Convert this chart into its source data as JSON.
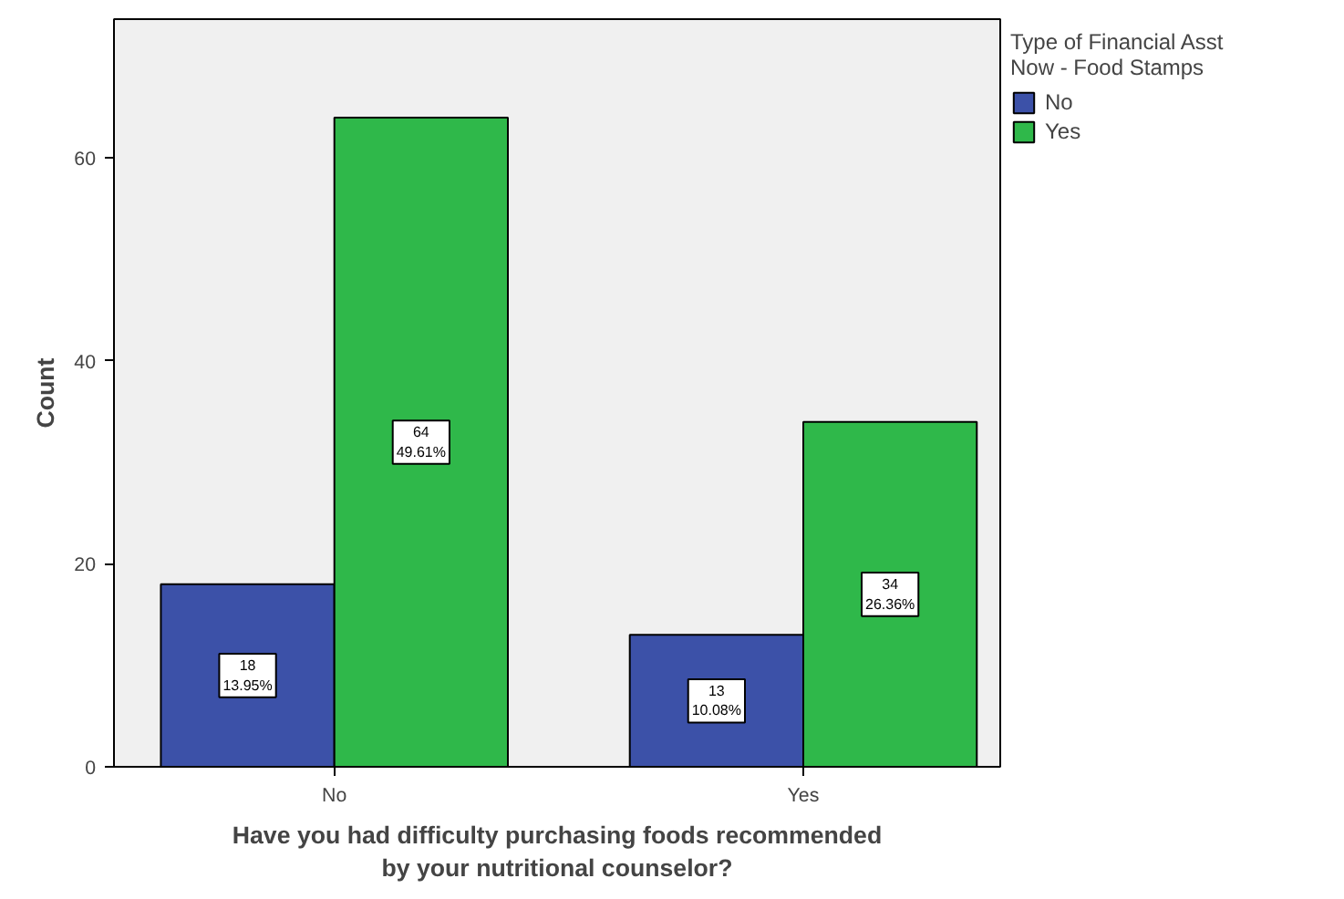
{
  "chart_data": {
    "type": "bar",
    "xlabel": "Have you had difficulty purchasing foods recommended\nby your nutritional counselor?",
    "ylabel": "Count",
    "legend_title": "Type of Financial Asst\nNow - Food Stamps",
    "categories": [
      "No",
      "Yes"
    ],
    "series": [
      {
        "name": "No",
        "color": "#3c51a8",
        "values": [
          18,
          13
        ],
        "value_labels": [
          "18\n13.95%",
          "13\n10.08%"
        ]
      },
      {
        "name": "Yes",
        "color": "#2fb84a",
        "values": [
          64,
          34
        ],
        "value_labels": [
          "64\n49.61%",
          "34\n26.36%"
        ]
      }
    ],
    "ylim": [
      0,
      73.7
    ],
    "yticks": [
      0,
      20,
      40,
      60
    ],
    "grid": false,
    "legend": "top right"
  }
}
